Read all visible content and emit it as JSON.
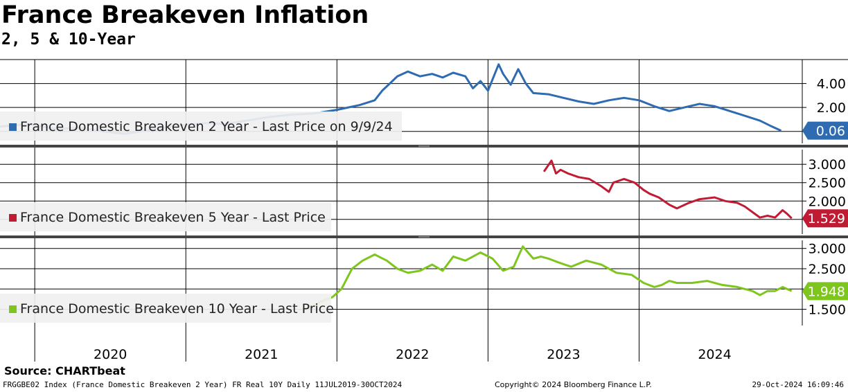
{
  "header": {
    "title": "France Breakeven Inflation",
    "subtitle": "2, 5 & 10-Year"
  },
  "footer": {
    "source": "Source: CHARTbeat",
    "left_text": "FRGGBE02 Index (France Domestic Breakeven 2 Year) FR Real 10Y  Daily 11JUL2019-30OCT2024",
    "copyright": "Copyright© 2024 Bloomberg Finance L.P.",
    "timestamp": "29-Oct-2024 16:09:46"
  },
  "chart_data": [
    {
      "type": "line",
      "panel": "top",
      "legend": "France Domestic Breakeven 2 Year - Last Price on 9/9/24",
      "color": "#2e6bb0",
      "last_value": "0.06",
      "yticks": [
        "4.00",
        "2.00"
      ],
      "ylim": [
        -1.0,
        6.0
      ],
      "x_range": [
        2019.52,
        2024.83
      ],
      "x": [
        2019.52,
        2019.7,
        2019.9,
        2020.05,
        2020.2,
        2020.35,
        2020.5,
        2020.7,
        2020.9,
        2021.0,
        2021.15,
        2021.3,
        2021.45,
        2021.6,
        2021.75,
        2021.9,
        2022.0,
        2022.05,
        2022.1,
        2022.15,
        2022.22,
        2022.3,
        2022.38,
        2022.45,
        2022.52,
        2022.6,
        2022.65,
        2022.7,
        2022.75,
        2022.82,
        2022.85,
        2022.9,
        2022.95,
        2023.0,
        2023.05,
        2023.15,
        2023.25,
        2023.35,
        2023.45,
        2023.55,
        2023.65,
        2023.75,
        2023.85,
        2023.95,
        2024.05,
        2024.15,
        2024.25,
        2024.35,
        2024.45,
        2024.55,
        2024.63,
        2024.69
      ],
      "values": [
        0.4,
        0.6,
        0.2,
        0.3,
        0.0,
        -0.2,
        0.1,
        0.5,
        0.7,
        0.6,
        0.9,
        1.2,
        1.4,
        1.5,
        1.8,
        2.2,
        2.6,
        3.4,
        4.0,
        4.6,
        5.0,
        4.6,
        4.8,
        4.5,
        4.9,
        4.6,
        3.6,
        4.2,
        3.4,
        5.6,
        4.8,
        3.9,
        5.2,
        4.0,
        3.2,
        3.1,
        2.8,
        2.5,
        2.3,
        2.6,
        2.8,
        2.6,
        2.1,
        1.7,
        2.0,
        2.3,
        2.1,
        1.7,
        1.3,
        0.9,
        0.4,
        0.06
      ]
    },
    {
      "type": "line",
      "panel": "middle",
      "legend": "France Domestic Breakeven 5 Year - Last Price",
      "color": "#c11b34",
      "last_value": "1.529",
      "yticks": [
        "3.000",
        "2.500",
        "2.000"
      ],
      "ylim": [
        1.1,
        3.4
      ],
      "x_range": [
        2019.52,
        2024.83
      ],
      "x": [
        2023.12,
        2023.17,
        2023.2,
        2023.23,
        2023.28,
        2023.35,
        2023.42,
        2023.5,
        2023.55,
        2023.58,
        2023.65,
        2023.72,
        2023.78,
        2023.82,
        2023.88,
        2023.95,
        2024.0,
        2024.08,
        2024.15,
        2024.25,
        2024.32,
        2024.4,
        2024.45,
        2024.5,
        2024.55,
        2024.6,
        2024.65,
        2024.7,
        2024.73,
        2024.76
      ],
      "values": [
        2.8,
        3.1,
        2.75,
        2.85,
        2.75,
        2.65,
        2.6,
        2.4,
        2.25,
        2.5,
        2.6,
        2.5,
        2.3,
        2.2,
        2.1,
        1.9,
        1.8,
        1.95,
        2.05,
        2.1,
        2.0,
        1.95,
        1.85,
        1.7,
        1.55,
        1.6,
        1.55,
        1.75,
        1.65,
        1.529
      ]
    },
    {
      "type": "line",
      "panel": "bottom",
      "legend": "France Domestic Breakeven 10 Year - Last Price",
      "color": "#7ec61e",
      "last_value": "1.948",
      "yticks": [
        "3.000",
        "2.500",
        "1.500"
      ],
      "ylim": [
        1.1,
        3.2
      ],
      "x_range": [
        2019.52,
        2024.83
      ],
      "x": [
        2021.52,
        2021.58,
        2021.65,
        2021.72,
        2021.78,
        2021.85,
        2021.92,
        2022.0,
        2022.08,
        2022.15,
        2022.22,
        2022.3,
        2022.38,
        2022.45,
        2022.52,
        2022.6,
        2022.7,
        2022.78,
        2022.85,
        2022.92,
        2022.98,
        2023.05,
        2023.1,
        2023.15,
        2023.22,
        2023.3,
        2023.4,
        2023.5,
        2023.6,
        2023.7,
        2023.78,
        2023.85,
        2023.9,
        2023.95,
        2024.0,
        2024.1,
        2024.2,
        2024.3,
        2024.4,
        2024.45,
        2024.5,
        2024.55,
        2024.6,
        2024.65,
        2024.7,
        2024.76
      ],
      "values": [
        1.5,
        1.55,
        1.7,
        1.8,
        2.0,
        2.5,
        2.7,
        2.85,
        2.7,
        2.5,
        2.4,
        2.45,
        2.6,
        2.45,
        2.8,
        2.7,
        2.9,
        2.75,
        2.45,
        2.55,
        3.05,
        2.75,
        2.8,
        2.75,
        2.65,
        2.55,
        2.7,
        2.6,
        2.4,
        2.35,
        2.15,
        2.05,
        2.1,
        2.2,
        2.15,
        2.15,
        2.2,
        2.1,
        2.05,
        2.0,
        1.95,
        1.85,
        1.95,
        1.95,
        2.05,
        1.948
      ]
    }
  ],
  "x_axis": {
    "tick_years": [
      2020,
      2021,
      2022,
      2023,
      2024
    ],
    "year_labels": [
      "2020",
      "2021",
      "2022",
      "2023",
      "2024"
    ],
    "gridlines": [
      2019.75,
      2020.75,
      2021.75,
      2022.75,
      2023.75
    ]
  }
}
